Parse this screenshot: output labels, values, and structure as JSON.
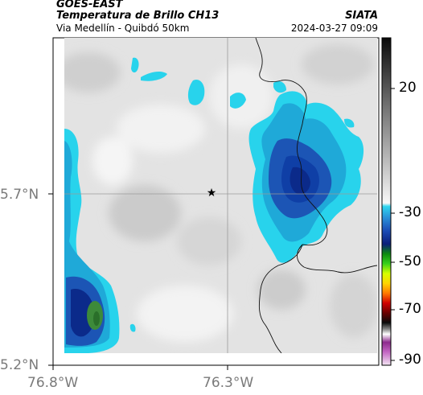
{
  "header": {
    "source": "GOES-EAST",
    "title": "Temperatura de Brillo CH13",
    "subtitle": "Via Medellín - Quibdó 50km",
    "org": "SIATA",
    "timestamp": "2024-03-27 09:09"
  },
  "map": {
    "lat_labels": [
      "5.7°N",
      "5.2°N"
    ],
    "lon_labels": [
      "76.8°W",
      "76.3°W"
    ],
    "marker_icon": "star-icon"
  },
  "colorbar": {
    "ticks": [
      "20",
      "-30",
      "-50",
      "-70",
      "-90"
    ]
  },
  "colors": {
    "background": "#e4e4e4",
    "cold_cloud": "#0f3fa6",
    "mid_cloud": "#1fa9d8",
    "edge_cloud": "#28d3ec",
    "deep_core": "#3d8a3a"
  }
}
